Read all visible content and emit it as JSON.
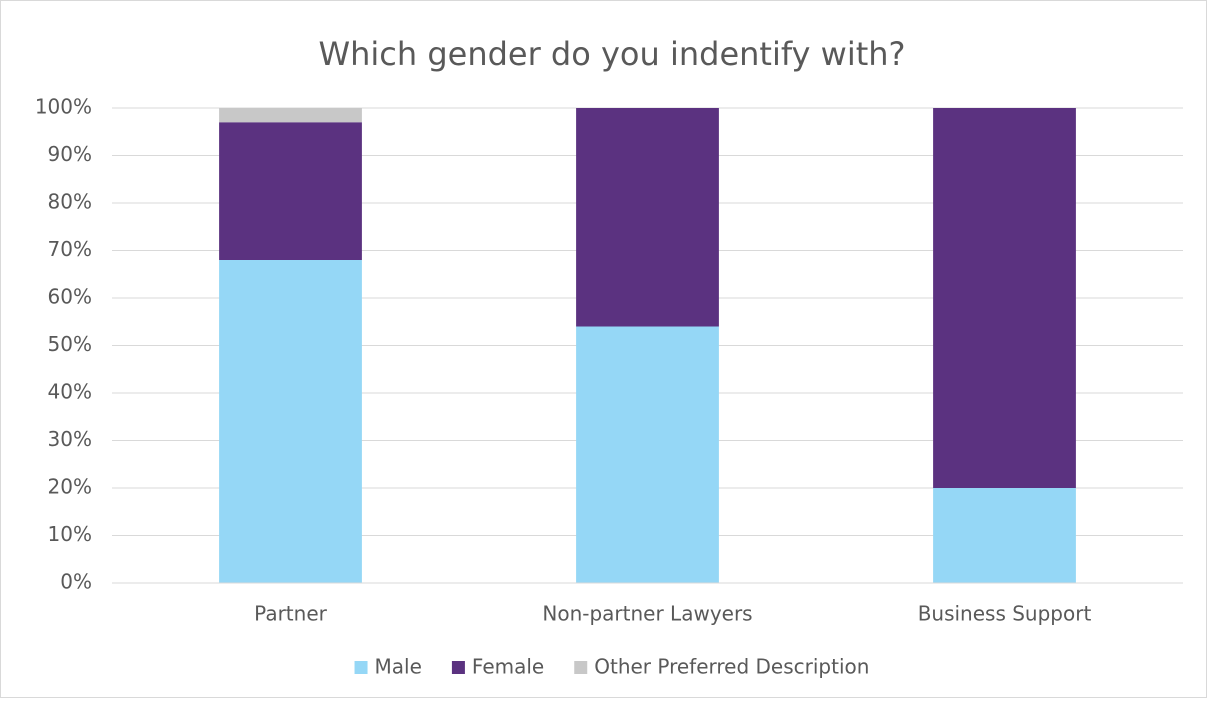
{
  "chart_data": {
    "type": "stacked_bar",
    "title": "Which gender do you indentify with?",
    "categories": [
      "Partner",
      "Non-partner Lawyers",
      "Business Support"
    ],
    "series": [
      {
        "name": "Male",
        "color": "#95d7f6",
        "values": [
          68,
          54,
          20
        ]
      },
      {
        "name": "Female",
        "color": "#5b3280",
        "values": [
          29,
          46,
          80
        ]
      },
      {
        "name": "Other Preferred Description",
        "color": "#c8c8c8",
        "values": [
          3,
          0,
          0
        ]
      }
    ],
    "ylim": [
      0,
      100
    ],
    "yticks": [
      {
        "value": 0,
        "label": "0%"
      },
      {
        "value": 10,
        "label": "10%"
      },
      {
        "value": 20,
        "label": "20%"
      },
      {
        "value": 30,
        "label": "30%"
      },
      {
        "value": 40,
        "label": "40%"
      },
      {
        "value": 50,
        "label": "50%"
      },
      {
        "value": 60,
        "label": "60%"
      },
      {
        "value": 70,
        "label": "70%"
      },
      {
        "value": 80,
        "label": "80%"
      },
      {
        "value": 90,
        "label": "90%"
      },
      {
        "value": 100,
        "label": "100%"
      }
    ],
    "grid": true,
    "legend": "bottom"
  }
}
